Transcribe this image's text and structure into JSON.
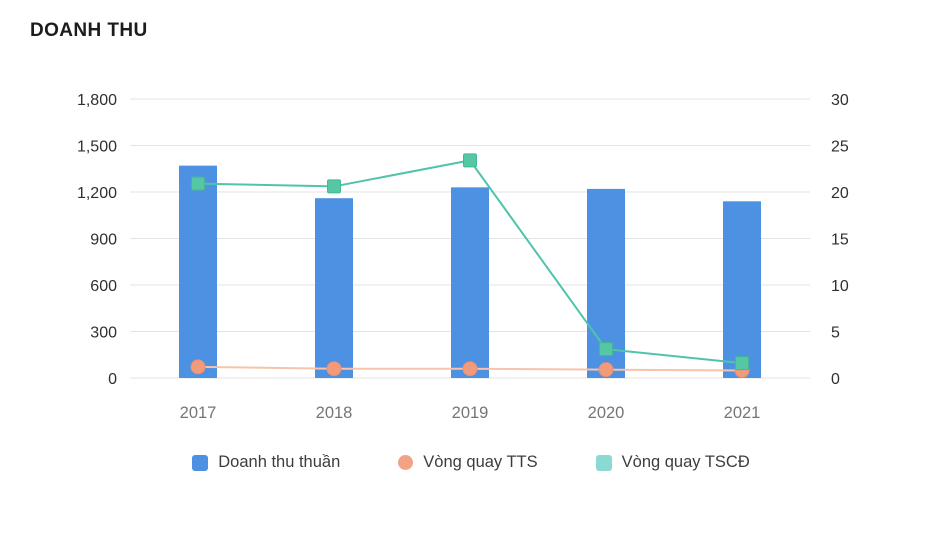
{
  "page": {
    "title": "DOANH THU"
  },
  "chart_data": {
    "type": "combo",
    "title": "DOANH THU",
    "categories": [
      "2017",
      "2018",
      "2019",
      "2020",
      "2021"
    ],
    "bar_series": {
      "name": "Doanh thu thuần",
      "axis": "left",
      "values": [
        1370,
        1160,
        1230,
        1220,
        1140
      ],
      "color": "#4D91E2"
    },
    "line_series": [
      {
        "name": "Vòng quay TTS",
        "axis": "right",
        "type": "line",
        "marker": "circle",
        "values": [
          1.2,
          1.0,
          1.0,
          0.9,
          0.8
        ],
        "color": "#F7C3A9",
        "marker_color": "#F19B7C",
        "marker_stroke": "#EE8E6C",
        "legend_color": "#F2A285"
      },
      {
        "name": "Vòng quay TSCĐ",
        "axis": "right",
        "type": "line",
        "marker": "square",
        "values": [
          20.9,
          20.6,
          23.4,
          3.1,
          1.6
        ],
        "color": "#4FC4AB",
        "marker_color": "#55C7A4",
        "marker_stroke": "#44B795",
        "legend_color": "#8AD9D3"
      }
    ],
    "left_axis": {
      "min": 0,
      "max": 1800,
      "step": 300,
      "ticks": [
        "0",
        "300",
        "600",
        "900",
        "1,200",
        "1,500",
        "1,800"
      ]
    },
    "right_axis": {
      "min": 0,
      "max": 30,
      "step": 5,
      "ticks": [
        "0",
        "5",
        "10",
        "15",
        "20",
        "25",
        "30"
      ]
    },
    "grid": true,
    "grid_color": "#e3e3e3",
    "legend_position": "bottom"
  }
}
